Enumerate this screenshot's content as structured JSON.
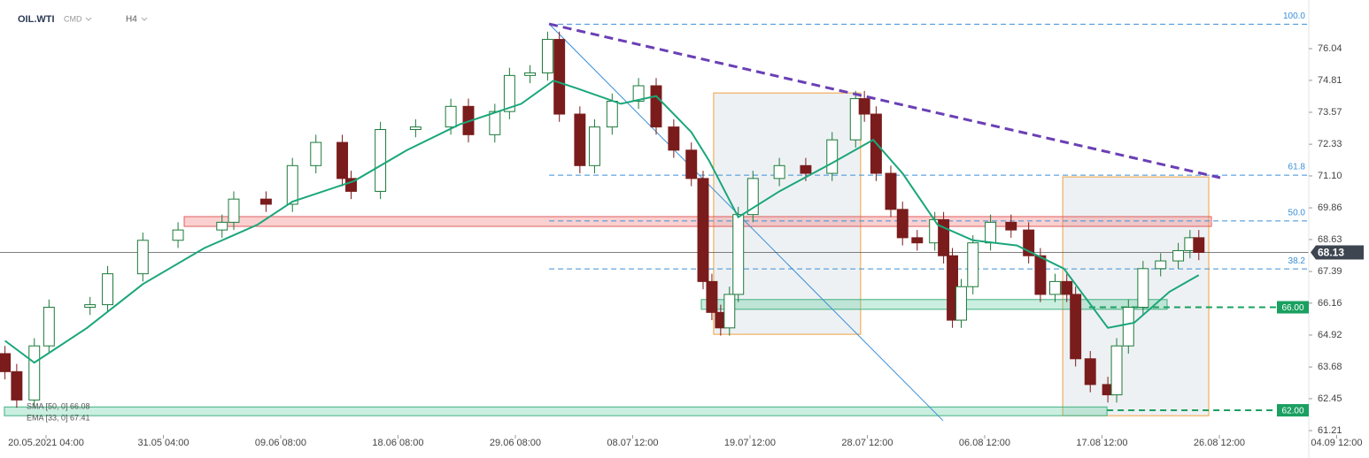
{
  "chart_data": {
    "type": "candlestick",
    "symbol": "OIL.WTI",
    "market": "CMD",
    "interval": "H4",
    "color_up": "#1b7a3a",
    "color_down": "#7a1c1c",
    "x": [
      -14,
      -10,
      -4,
      1,
      15,
      21,
      33,
      45,
      60,
      64,
      75,
      84,
      92,
      101,
      104,
      114,
      126,
      138,
      144,
      153,
      158,
      165,
      171,
      175,
      182,
      187,
      193,
      202,
      208,
      214,
      220,
      224,
      227,
      230,
      233,
      236,
      241,
      250,
      259,
      268,
      276,
      279,
      283,
      288,
      292,
      297,
      303,
      306,
      309,
      312,
      316,
      322,
      329,
      335,
      339,
      344,
      348,
      351,
      356,
      362,
      365,
      369,
      374,
      380,
      386,
      390,
      393
    ],
    "open": [
      64.2,
      63.5,
      62.4,
      64.5,
      66.0,
      66.1,
      67.3,
      68.6,
      69.0,
      69.3,
      70.2,
      70.0,
      71.5,
      72.4,
      71.0,
      70.5,
      72.9,
      73.0,
      73.8,
      72.7,
      73.6,
      75.0,
      75.1,
      76.4,
      73.5,
      71.5,
      73.0,
      74.0,
      74.6,
      73.0,
      72.1,
      71.0,
      67.0,
      65.8,
      65.2,
      66.5,
      69.6,
      71.0,
      71.5,
      71.2,
      72.5,
      74.1,
      73.5,
      71.2,
      69.8,
      68.7,
      68.5,
      69.4,
      68.0,
      65.5,
      66.8,
      68.5,
      69.3,
      69.0,
      68.0,
      66.5,
      67.0,
      66.5,
      64.0,
      63.0,
      62.6,
      64.5,
      66.0,
      67.5,
      67.8,
      68.2,
      68.7
    ],
    "high": [
      64.5,
      63.8,
      64.8,
      66.3,
      66.4,
      67.6,
      68.9,
      69.3,
      69.6,
      70.5,
      70.5,
      71.8,
      72.7,
      72.7,
      71.3,
      73.2,
      73.3,
      74.1,
      74.1,
      73.9,
      75.3,
      75.4,
      76.7,
      76.7,
      73.8,
      73.3,
      74.3,
      74.9,
      74.9,
      73.3,
      72.4,
      71.3,
      67.3,
      66.1,
      66.8,
      69.9,
      71.3,
      71.8,
      71.8,
      72.8,
      74.4,
      74.4,
      73.8,
      71.5,
      70.1,
      69.0,
      69.7,
      69.7,
      68.3,
      67.1,
      68.8,
      69.6,
      69.6,
      69.3,
      68.3,
      67.3,
      67.3,
      66.8,
      64.3,
      63.3,
      64.8,
      66.3,
      67.8,
      68.1,
      68.5,
      69.0,
      69.0
    ],
    "low": [
      63.2,
      62.1,
      62.1,
      64.2,
      65.7,
      65.8,
      67.0,
      68.3,
      68.7,
      69.0,
      69.7,
      69.7,
      71.2,
      70.7,
      70.2,
      70.2,
      72.6,
      72.7,
      72.4,
      72.4,
      73.3,
      74.7,
      74.8,
      73.2,
      71.2,
      71.2,
      72.7,
      73.7,
      72.7,
      71.8,
      70.7,
      66.7,
      65.5,
      64.9,
      64.9,
      66.2,
      69.3,
      70.7,
      70.9,
      70.9,
      72.2,
      73.2,
      70.9,
      69.5,
      68.4,
      68.2,
      68.2,
      67.7,
      65.2,
      65.2,
      66.5,
      68.2,
      68.7,
      67.7,
      66.2,
      66.2,
      66.2,
      63.7,
      62.7,
      62.3,
      62.3,
      64.2,
      65.7,
      67.2,
      67.5,
      67.9,
      67.83
    ],
    "close": [
      63.5,
      62.4,
      64.5,
      66.0,
      66.1,
      67.3,
      68.6,
      69.0,
      69.3,
      70.2,
      70.0,
      71.5,
      72.4,
      71.0,
      70.5,
      72.9,
      73.0,
      73.8,
      72.7,
      73.6,
      75.0,
      75.1,
      76.4,
      73.5,
      71.5,
      73.0,
      74.0,
      74.6,
      73.0,
      72.1,
      71.0,
      67.0,
      65.8,
      65.2,
      66.5,
      69.6,
      71.0,
      71.5,
      71.2,
      72.5,
      74.1,
      73.5,
      71.2,
      69.8,
      68.7,
      68.5,
      69.4,
      68.0,
      65.5,
      66.8,
      68.5,
      69.3,
      69.0,
      68.0,
      66.5,
      67.0,
      66.5,
      64.0,
      63.0,
      62.6,
      64.5,
      66.0,
      67.5,
      67.8,
      68.2,
      68.7,
      68.13
    ],
    "indicators": [
      "SMA [50, 0] 66.08"
    ],
    "series": [
      {
        "name": "EMA [33, 0] 67.41",
        "color": "#1aa67a",
        "x": [
          -14,
          -4,
          14,
          33,
          54,
          72,
          84,
          105,
          123,
          141,
          162,
          173,
          181,
          196,
          208,
          220,
          226,
          236,
          250,
          268,
          282,
          292,
          304,
          316,
          331,
          347,
          362,
          371,
          383,
          393
        ],
        "values": [
          64.7,
          63.85,
          65.2,
          66.9,
          68.3,
          69.2,
          70.1,
          70.9,
          72.1,
          73.1,
          73.9,
          74.8,
          74.5,
          73.9,
          74.2,
          72.8,
          71.7,
          69.5,
          70.5,
          71.6,
          72.5,
          71.2,
          69.2,
          68.6,
          68.4,
          67.5,
          65.2,
          65.4,
          66.6,
          67.25
        ]
      }
    ],
    "last_price": 68.13,
    "xlim": [
      -15.7,
      430.5
    ],
    "ylim": [
      61.04,
      77.93
    ],
    "xticks": [
      {
        "value": 0,
        "label": "20.05.2021 04:00"
      },
      {
        "value": 40,
        "label": "31.05 04:00"
      },
      {
        "value": 80,
        "label": "09.06 08:00"
      },
      {
        "value": 120,
        "label": "18.06 08:00"
      },
      {
        "value": 160,
        "label": "29.06 08:00"
      },
      {
        "value": 200,
        "label": "08.07 12:00"
      },
      {
        "value": 240,
        "label": "19.07 12:00"
      },
      {
        "value": 280,
        "label": "28.07 12:00"
      },
      {
        "value": 320,
        "label": "06.08 12:00"
      },
      {
        "value": 360,
        "label": "17.08 12:00"
      },
      {
        "value": 400,
        "label": "26.08 12:00"
      },
      {
        "value": 440,
        "label": "04.09 12:00"
      }
    ],
    "yticks": [
      76.04,
      74.81,
      73.57,
      72.33,
      {
        "value": 71.1,
        "label": "71.10"
      },
      69.86,
      68.63,
      67.39,
      66.16,
      64.92,
      63.68,
      62.45,
      61.21
    ],
    "fib_levels": [
      {
        "price": 76.99,
        "label": "100.0"
      },
      {
        "price": 71.13,
        "label": "61.8"
      },
      {
        "price": 69.35,
        "label": "50.0"
      },
      {
        "price": 67.49,
        "label": "38.2"
      }
    ],
    "fib_x": 171.5,
    "levels": [
      {
        "value": 66,
        "label": "66.00",
        "x": 355.6
      },
      {
        "value": 62,
        "label": "62.00",
        "x": 361.7
      }
    ],
    "trendline": {
      "x": [
        171.5,
        400.3
      ],
      "values": [
        77.0,
        71.03
      ]
    },
    "diagonal": {
      "x": [
        171.5,
        305.8
      ],
      "values": [
        77.0,
        61.6
      ]
    },
    "zones": [
      {
        "x": [
          47.1,
          397.3
        ],
        "values": [
          69.52,
          69.14
        ],
        "color": "red"
      },
      {
        "x": [
          223.4,
          382.2
        ],
        "values": [
          66.3,
          65.92
        ],
        "color": "green"
      },
      {
        "x": [
          -14.2,
          361.7
        ],
        "values": [
          62.13,
          61.79
        ],
        "color": "green"
      }
    ],
    "boxes": [
      {
        "x": [
          227.6,
          277.7
        ],
        "values": [
          74.32,
          64.95
        ]
      },
      {
        "x": [
          346.6,
          396.4
        ],
        "values": [
          71.06,
          61.79
        ]
      }
    ]
  }
}
